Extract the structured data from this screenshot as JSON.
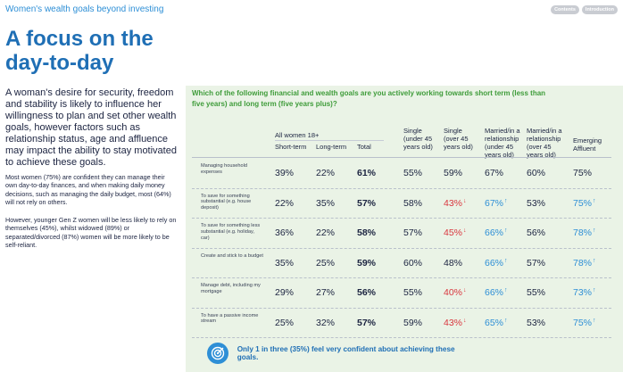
{
  "header": {
    "section_title": "Women's wealth goals beyond investing",
    "nav": [
      "Contents",
      "Introduction"
    ]
  },
  "title": "A focus on the day-to-day",
  "intro": "A woman's desire for security, freedom and stability is likely to influence her willingness to plan and set other wealth goals, however factors such as relationship status, age and affluence may impact the ability to stay motivated to achieve these goals.",
  "body": [
    "Most women (75%) are confident they can manage their own day-to-day finances, and when making daily money decisions, such as managing the daily budget, most (64%) will not rely on others.",
    "However, younger Gen Z women will be less likely to rely on themselves (45%), whilst widowed (89%) or separated/divorced (87%) women will be more likely to be self-reliant."
  ],
  "table": {
    "question": "Which of the following financial and wealth goals are you actively working towards short term (less than five years) and long term (five years plus)?",
    "group_label": "All women 18+",
    "sub_columns": [
      "Short-term",
      "Long-term",
      "Total"
    ],
    "segment_columns": [
      "Single\n(under 45\nyears old)",
      "Single\n(over 45\nyears old)",
      "Married/in a\nrelationship\n(under 45\nyears old)",
      "Married/in a\nrelationship\n(over 45\nyears old)",
      "Emerging\nAffluent"
    ],
    "rows": [
      {
        "label": "Managing household expenses",
        "short": "39%",
        "long": "22%",
        "total": "61%",
        "segments": [
          {
            "v": "55%",
            "t": ""
          },
          {
            "v": "59%",
            "t": ""
          },
          {
            "v": "67%",
            "t": ""
          },
          {
            "v": "60%",
            "t": ""
          },
          {
            "v": "75%",
            "t": ""
          }
        ]
      },
      {
        "label": "To save for something substantial (e.g. house deposit)",
        "short": "22%",
        "long": "35%",
        "total": "57%",
        "segments": [
          {
            "v": "58%",
            "t": ""
          },
          {
            "v": "43%",
            "t": "down"
          },
          {
            "v": "67%",
            "t": "up"
          },
          {
            "v": "53%",
            "t": ""
          },
          {
            "v": "75%",
            "t": "up"
          }
        ]
      },
      {
        "label": "To save for something less substantial (e.g. holiday, car)",
        "short": "36%",
        "long": "22%",
        "total": "58%",
        "segments": [
          {
            "v": "57%",
            "t": ""
          },
          {
            "v": "45%",
            "t": "down"
          },
          {
            "v": "66%",
            "t": "up"
          },
          {
            "v": "56%",
            "t": ""
          },
          {
            "v": "78%",
            "t": "up"
          }
        ]
      },
      {
        "label": "Create and stick to a budget",
        "short": "35%",
        "long": "25%",
        "total": "59%",
        "segments": [
          {
            "v": "60%",
            "t": ""
          },
          {
            "v": "48%",
            "t": ""
          },
          {
            "v": "66%",
            "t": "up"
          },
          {
            "v": "57%",
            "t": ""
          },
          {
            "v": "78%",
            "t": "up"
          }
        ]
      },
      {
        "label": "Manage debt, including my mortgage",
        "short": "29%",
        "long": "27%",
        "total": "56%",
        "segments": [
          {
            "v": "55%",
            "t": ""
          },
          {
            "v": "40%",
            "t": "down"
          },
          {
            "v": "66%",
            "t": "up"
          },
          {
            "v": "55%",
            "t": ""
          },
          {
            "v": "73%",
            "t": "up"
          }
        ]
      },
      {
        "label": "To have a passive income stream",
        "short": "25%",
        "long": "32%",
        "total": "57%",
        "segments": [
          {
            "v": "59%",
            "t": ""
          },
          {
            "v": "43%",
            "t": "down"
          },
          {
            "v": "65%",
            "t": "up"
          },
          {
            "v": "53%",
            "t": ""
          },
          {
            "v": "75%",
            "t": "up"
          }
        ]
      }
    ],
    "arrow_up": "↑",
    "arrow_down": "↓"
  },
  "callout": {
    "icon": "target-icon",
    "text": "Only 1 in three (35%) feel very confident about achieving these goals."
  },
  "colors": {
    "title": "#1f6fb5",
    "accent": "#2e8fd6",
    "question": "#3f9c3a",
    "panel_bg": "#eaf3e6",
    "down": "#d9363e",
    "up": "#2e8fd6"
  }
}
